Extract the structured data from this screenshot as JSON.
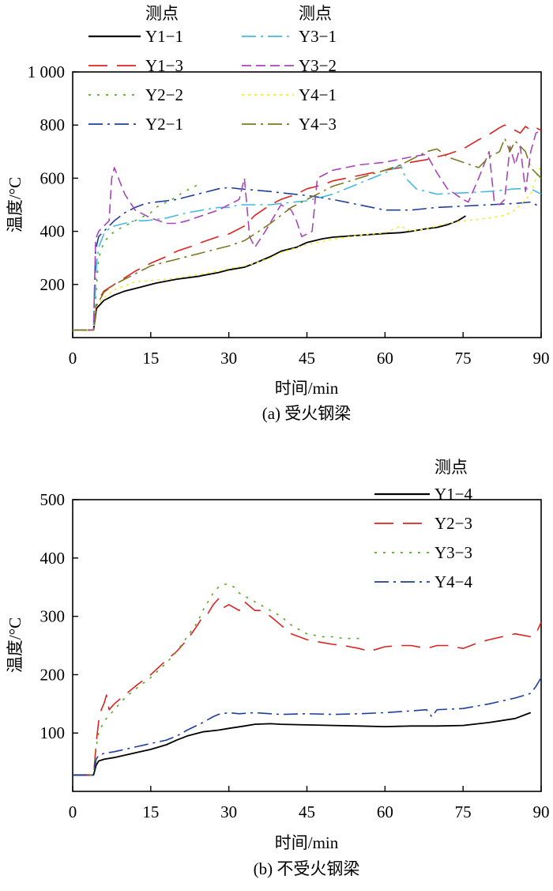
{
  "chart_data": [
    {
      "type": "line",
      "caption": "(a) 受火钢梁",
      "xlabel": "时间/min",
      "ylabel": "温度/°C",
      "xlim": [
        0,
        90
      ],
      "ylim": [
        0,
        1000
      ],
      "xticks": [
        0,
        15,
        30,
        45,
        60,
        75,
        90
      ],
      "xtick_labels": [
        "0",
        "15",
        "30",
        "45",
        "60",
        "75",
        "90"
      ],
      "yticks": [
        200,
        400,
        600,
        800,
        1000
      ],
      "ytick_labels": [
        "200",
        "400",
        "600",
        "800",
        "1 000"
      ],
      "legend_title_1": "测点",
      "legend_title_2": "测点",
      "series": [
        {
          "name": "Y1−1",
          "color": "#000000",
          "dash": "",
          "x": [
            0,
            4,
            4.6,
            6,
            8,
            10,
            13,
            16,
            20,
            24,
            28,
            30,
            33,
            35,
            38,
            40,
            43,
            45,
            48,
            50,
            55,
            60,
            63,
            65,
            68,
            70,
            72,
            74,
            75.5
          ],
          "y": [
            28,
            28,
            110,
            140,
            160,
            175,
            190,
            205,
            220,
            230,
            245,
            255,
            265,
            280,
            305,
            325,
            340,
            358,
            372,
            378,
            385,
            392,
            395,
            400,
            410,
            415,
            425,
            440,
            458
          ]
        },
        {
          "name": "Y1−3",
          "color": "#dd2222",
          "dash": "24 12",
          "x": [
            0,
            4,
            4.6,
            6,
            8,
            10,
            12,
            15,
            18,
            20,
            23,
            25,
            28,
            30,
            33,
            35,
            38,
            40,
            43,
            45,
            48,
            50,
            55,
            60,
            63,
            65,
            68,
            70,
            72,
            75,
            78,
            80,
            82,
            83,
            84,
            85,
            86,
            87,
            88,
            89,
            90
          ],
          "y": [
            28,
            28,
            130,
            175,
            200,
            225,
            250,
            280,
            305,
            325,
            345,
            360,
            380,
            390,
            420,
            460,
            500,
            520,
            540,
            560,
            575,
            590,
            610,
            630,
            640,
            660,
            670,
            680,
            690,
            710,
            745,
            765,
            790,
            800,
            790,
            780,
            770,
            795,
            780,
            790,
            780
          ]
        },
        {
          "name": "Y2−2",
          "color": "#55aa22",
          "dash": "3 8",
          "x": [
            0,
            4,
            4.6,
            5,
            6,
            7,
            8,
            9,
            10,
            11,
            12,
            13,
            14,
            15,
            16,
            17,
            18,
            19,
            20,
            21,
            22,
            23,
            24
          ],
          "y": [
            28,
            28,
            200,
            300,
            360,
            380,
            400,
            410,
            420,
            430,
            440,
            450,
            460,
            470,
            490,
            500,
            510,
            520,
            530,
            545,
            555,
            565,
            575
          ]
        },
        {
          "name": "Y2−1",
          "color": "#1f3f9f",
          "dash": "18 6 3 6",
          "x": [
            0,
            4,
            4.4,
            5,
            6,
            7,
            8,
            10,
            12,
            14,
            16,
            18,
            20,
            22,
            25,
            28,
            30,
            32,
            35,
            38,
            40,
            45,
            50,
            55,
            60,
            65,
            70,
            75,
            80,
            85,
            88,
            89,
            90
          ],
          "y": [
            28,
            28,
            330,
            380,
            400,
            420,
            440,
            470,
            490,
            505,
            510,
            515,
            520,
            530,
            545,
            560,
            565,
            560,
            555,
            550,
            545,
            535,
            520,
            500,
            480,
            480,
            490,
            495,
            500,
            505,
            510,
            500,
            495
          ]
        },
        {
          "name": "Y3−1",
          "color": "#44bbdd",
          "dash": "18 6 3 6",
          "x": [
            0,
            4,
            4.6,
            5,
            6,
            7,
            8,
            10,
            12,
            14,
            16,
            18,
            20,
            22,
            25,
            28,
            30,
            32,
            35,
            38,
            40,
            45,
            50,
            55,
            60,
            62,
            63,
            64,
            66,
            70,
            75,
            80,
            85,
            88,
            90
          ],
          "y": [
            28,
            28,
            280,
            340,
            390,
            410,
            420,
            430,
            440,
            440,
            445,
            450,
            460,
            470,
            480,
            490,
            490,
            500,
            500,
            500,
            505,
            515,
            540,
            580,
            620,
            640,
            650,
            600,
            560,
            540,
            545,
            550,
            560,
            560,
            540
          ]
        },
        {
          "name": "Y3−2",
          "color": "#aa44bb",
          "dash": "12 6",
          "x": [
            0,
            4,
            4.4,
            5,
            6,
            7,
            7.5,
            8,
            9,
            10,
            11,
            12,
            13,
            15,
            18,
            20,
            22,
            25,
            28,
            30,
            32,
            33,
            34,
            35,
            37,
            40,
            42,
            43,
            44,
            45,
            46,
            47,
            48,
            50,
            55,
            60,
            65,
            68,
            70,
            72,
            75,
            76,
            78,
            80,
            81,
            82,
            83,
            84,
            85,
            86,
            87,
            88,
            89,
            90
          ],
          "y": [
            28,
            28,
            370,
            400,
            420,
            440,
            600,
            640,
            590,
            540,
            510,
            480,
            470,
            450,
            430,
            430,
            440,
            460,
            480,
            500,
            520,
            600,
            380,
            340,
            400,
            500,
            480,
            440,
            380,
            390,
            400,
            600,
            610,
            630,
            650,
            660,
            680,
            690,
            620,
            560,
            520,
            510,
            600,
            700,
            510,
            500,
            520,
            720,
            650,
            720,
            550,
            700,
            770,
            780
          ]
        },
        {
          "name": "Y4−1",
          "color": "#eeee22",
          "dash": "3 5",
          "x": [
            0,
            4,
            4.6,
            6,
            8,
            10,
            12,
            15,
            18,
            20,
            25,
            28,
            30,
            33,
            35,
            38,
            40,
            45,
            50,
            55,
            60,
            62,
            63,
            65,
            68,
            70,
            72,
            75,
            78,
            80,
            83,
            85,
            86,
            87,
            88,
            89,
            90
          ],
          "y": [
            28,
            28,
            120,
            150,
            180,
            195,
            210,
            215,
            220,
            225,
            240,
            250,
            260,
            270,
            280,
            300,
            320,
            350,
            370,
            385,
            395,
            410,
            420,
            400,
            410,
            420,
            430,
            440,
            445,
            450,
            460,
            480,
            500,
            520,
            540,
            600,
            650
          ]
        },
        {
          "name": "Y4−3",
          "color": "#7a7a22",
          "dash": "18 6 3 6",
          "x": [
            0,
            4,
            4.6,
            6,
            8,
            10,
            13,
            15,
            18,
            20,
            23,
            25,
            28,
            30,
            33,
            35,
            38,
            40,
            42,
            45,
            48,
            50,
            55,
            60,
            63,
            65,
            67,
            68,
            70,
            72,
            75,
            78,
            80,
            82,
            83,
            84,
            85,
            86,
            87,
            88,
            89,
            90
          ],
          "y": [
            28,
            28,
            120,
            170,
            200,
            220,
            250,
            270,
            285,
            295,
            310,
            320,
            335,
            345,
            365,
            390,
            430,
            460,
            490,
            520,
            550,
            570,
            600,
            630,
            650,
            670,
            690,
            700,
            710,
            680,
            660,
            640,
            680,
            700,
            750,
            700,
            740,
            720,
            700,
            640,
            620,
            600
          ]
        }
      ]
    },
    {
      "type": "line",
      "caption": "(b) 不受火钢梁",
      "xlabel": "时间/min",
      "ylabel": "温度/°C",
      "xlim": [
        0,
        90
      ],
      "ylim": [
        0,
        500
      ],
      "xticks": [
        0,
        15,
        30,
        45,
        60,
        75,
        90
      ],
      "xtick_labels": [
        "0",
        "15",
        "30",
        "45",
        "60",
        "75",
        "90"
      ],
      "yticks": [
        100,
        200,
        300,
        400,
        500
      ],
      "ytick_labels": [
        "100",
        "200",
        "300",
        "400",
        "500"
      ],
      "legend_title": "测点",
      "series": [
        {
          "name": "Y1−4",
          "color": "#000000",
          "dash": "",
          "x": [
            0,
            4,
            4.5,
            5,
            6,
            8,
            10,
            12,
            15,
            18,
            20,
            22,
            25,
            28,
            30,
            33,
            35,
            38,
            40,
            45,
            50,
            55,
            60,
            65,
            70,
            75,
            80,
            85,
            88
          ],
          "y": [
            28,
            28,
            45,
            52,
            55,
            58,
            62,
            66,
            72,
            80,
            88,
            95,
            102,
            105,
            108,
            112,
            115,
            116,
            115,
            114,
            113,
            112,
            111,
            112,
            112,
            113,
            118,
            125,
            135
          ]
        },
        {
          "name": "Y2−3",
          "color": "#dd2222",
          "dash": "24 12",
          "x": [
            0,
            4,
            4.6,
            5,
            5.5,
            6,
            6.5,
            7,
            8,
            10,
            12,
            15,
            18,
            20,
            22,
            24,
            25,
            26,
            27,
            28,
            29,
            30,
            32,
            33,
            35,
            36,
            38,
            40,
            42,
            45,
            48,
            50,
            52,
            55,
            57,
            60,
            63,
            65,
            68,
            70,
            72,
            75,
            78,
            80,
            85,
            88,
            89,
            90
          ],
          "y": [
            28,
            28,
            90,
            120,
            140,
            150,
            165,
            140,
            150,
            165,
            180,
            200,
            225,
            240,
            260,
            285,
            300,
            305,
            320,
            330,
            315,
            320,
            310,
            325,
            310,
            310,
            300,
            285,
            270,
            260,
            255,
            252,
            250,
            245,
            240,
            248,
            250,
            250,
            245,
            250,
            250,
            245,
            255,
            260,
            270,
            265,
            270,
            290
          ]
        },
        {
          "name": "Y3−3",
          "color": "#55aa22",
          "dash": "3 8",
          "x": [
            0,
            4,
            4.6,
            5,
            5.5,
            6,
            7,
            8,
            10,
            12,
            15,
            18,
            20,
            22,
            24,
            25,
            27,
            28,
            29,
            30,
            31,
            32,
            34,
            36,
            38,
            40,
            42,
            45,
            48,
            50,
            52,
            55,
            56
          ],
          "y": [
            28,
            28,
            80,
            100,
            110,
            120,
            130,
            140,
            160,
            175,
            195,
            220,
            240,
            265,
            290,
            310,
            340,
            350,
            355,
            355,
            350,
            340,
            330,
            320,
            310,
            300,
            285,
            270,
            265,
            265,
            262,
            262,
            265
          ]
        },
        {
          "name": "Y4−4",
          "color": "#1f3f9f",
          "dash": "18 6 3 6",
          "x": [
            0,
            4,
            4.5,
            5,
            6,
            8,
            10,
            12,
            15,
            18,
            20,
            22,
            25,
            27,
            28,
            30,
            32,
            35,
            38,
            40,
            45,
            50,
            55,
            60,
            65,
            68,
            69,
            70,
            75,
            80,
            85,
            88,
            89,
            90
          ],
          "y": [
            28,
            28,
            55,
            62,
            65,
            68,
            72,
            76,
            82,
            88,
            95,
            105,
            118,
            128,
            132,
            135,
            133,
            135,
            133,
            132,
            133,
            132,
            133,
            135,
            138,
            140,
            128,
            140,
            142,
            150,
            160,
            168,
            180,
            195
          ]
        }
      ]
    }
  ]
}
